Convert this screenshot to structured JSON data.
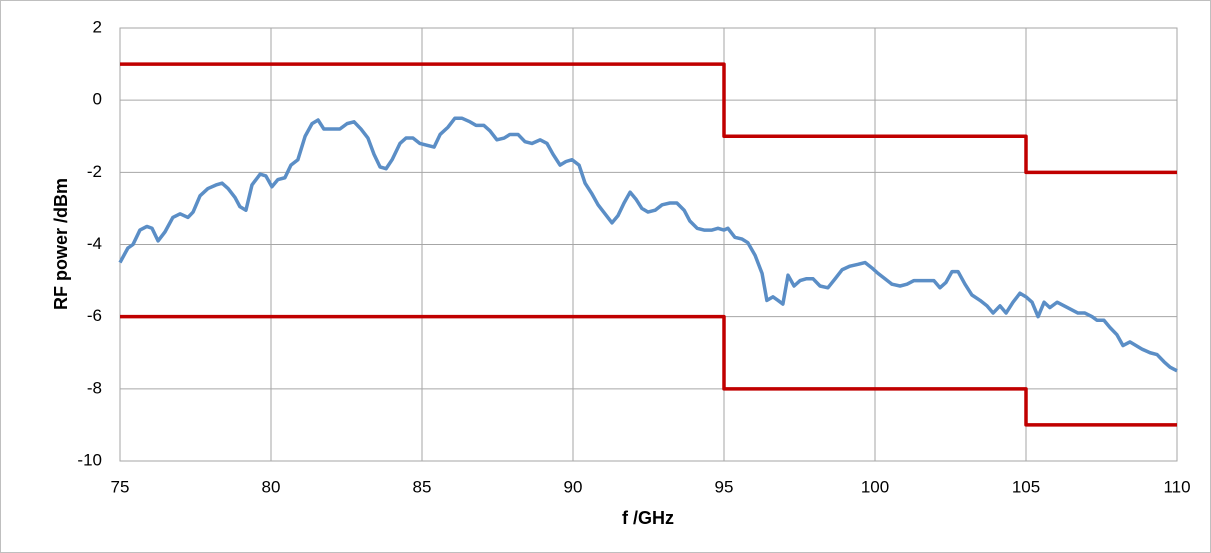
{
  "chart_data": {
    "type": "line",
    "xlabel": "f /GHz",
    "ylabel": "RF power /dBm",
    "xlim": [
      75,
      110
    ],
    "xticks": [
      75,
      80,
      85,
      90,
      95,
      100,
      105,
      110
    ],
    "ylim": [
      -10,
      2
    ],
    "yticks": [
      -10,
      -8,
      -6,
      -4,
      -2,
      0,
      2
    ],
    "grid": true,
    "series": [
      {
        "color": "#c00000",
        "x": [
          75,
          95,
          95,
          105,
          105,
          110
        ],
        "values": [
          1,
          1,
          -1,
          -1,
          -2,
          -2
        ]
      },
      {
        "color": "#c00000",
        "x": [
          75,
          95,
          95,
          105,
          105,
          110
        ],
        "values": [
          -6,
          -6,
          -8,
          -8,
          -9,
          -9
        ]
      },
      {
        "color": "#5b8ec6",
        "x": [
          75,
          75.26,
          75.43,
          75.66,
          75.89,
          76.06,
          76.26,
          76.49,
          76.75,
          76.99,
          77.25,
          77.42,
          77.65,
          77.91,
          78.18,
          78.38,
          78.58,
          78.81,
          78.97,
          79.17,
          79.37,
          79.64,
          79.83,
          80.03,
          80.23,
          80.46,
          80.66,
          80.89,
          81.13,
          81.36,
          81.56,
          81.75,
          81.99,
          82.28,
          82.52,
          82.75,
          82.98,
          83.21,
          83.41,
          83.61,
          83.81,
          84.01,
          84.27,
          84.47,
          84.7,
          84.93,
          85.17,
          85.4,
          85.6,
          85.86,
          86.09,
          86.32,
          86.59,
          86.79,
          87.05,
          87.25,
          87.48,
          87.72,
          87.91,
          88.18,
          88.41,
          88.64,
          88.91,
          89.14,
          89.34,
          89.57,
          89.77,
          89.97,
          90.2,
          90.4,
          90.63,
          90.83,
          91.06,
          91.29,
          91.49,
          91.69,
          91.89,
          92.09,
          92.28,
          92.48,
          92.72,
          92.95,
          93.21,
          93.44,
          93.68,
          93.87,
          94.11,
          94.34,
          94.6,
          94.8,
          95,
          95.13,
          95.36,
          95.6,
          95.79,
          96.03,
          96.26,
          96.42,
          96.62,
          96.79,
          96.95,
          97.12,
          97.32,
          97.52,
          97.72,
          97.95,
          98.18,
          98.44,
          98.68,
          98.91,
          99.17,
          99.44,
          99.67,
          99.9,
          100.1,
          100.33,
          100.56,
          100.83,
          101.06,
          101.29,
          101.49,
          101.72,
          101.95,
          102.15,
          102.35,
          102.55,
          102.75,
          102.98,
          103.21,
          103.48,
          103.71,
          103.91,
          104.14,
          104.34,
          104.57,
          104.8,
          105,
          105.2,
          105.4,
          105.6,
          105.79,
          106.03,
          106.26,
          106.49,
          106.72,
          106.95,
          107.19,
          107.35,
          107.58,
          107.78,
          108.01,
          108.21,
          108.44,
          108.64,
          108.84,
          109.11,
          109.34,
          109.57,
          109.77,
          110
        ],
        "values": [
          -4.5,
          -4.1,
          -4.0,
          -3.6,
          -3.5,
          -3.55,
          -3.9,
          -3.65,
          -3.25,
          -3.15,
          -3.25,
          -3.1,
          -2.65,
          -2.45,
          -2.35,
          -2.3,
          -2.45,
          -2.7,
          -2.95,
          -3.05,
          -2.35,
          -2.05,
          -2.1,
          -2.4,
          -2.2,
          -2.15,
          -1.8,
          -1.65,
          -1.0,
          -0.65,
          -0.55,
          -0.8,
          -0.8,
          -0.8,
          -0.65,
          -0.6,
          -0.8,
          -1.05,
          -1.5,
          -1.85,
          -1.9,
          -1.65,
          -1.2,
          -1.05,
          -1.05,
          -1.2,
          -1.25,
          -1.3,
          -0.95,
          -0.75,
          -0.5,
          -0.5,
          -0.6,
          -0.7,
          -0.7,
          -0.85,
          -1.1,
          -1.05,
          -0.95,
          -0.95,
          -1.15,
          -1.2,
          -1.1,
          -1.2,
          -1.5,
          -1.8,
          -1.7,
          -1.65,
          -1.8,
          -2.3,
          -2.6,
          -2.9,
          -3.15,
          -3.4,
          -3.2,
          -2.85,
          -2.55,
          -2.75,
          -3.0,
          -3.1,
          -3.05,
          -2.9,
          -2.85,
          -2.85,
          -3.05,
          -3.35,
          -3.55,
          -3.6,
          -3.6,
          -3.55,
          -3.6,
          -3.55,
          -3.8,
          -3.85,
          -3.95,
          -4.3,
          -4.8,
          -5.55,
          -5.45,
          -5.55,
          -5.65,
          -4.85,
          -5.15,
          -5.0,
          -4.95,
          -4.95,
          -5.15,
          -5.2,
          -4.95,
          -4.7,
          -4.6,
          -4.55,
          -4.5,
          -4.65,
          -4.8,
          -4.95,
          -5.1,
          -5.15,
          -5.1,
          -5.0,
          -5.0,
          -5.0,
          -5.0,
          -5.2,
          -5.05,
          -4.75,
          -4.75,
          -5.1,
          -5.4,
          -5.55,
          -5.7,
          -5.9,
          -5.7,
          -5.9,
          -5.6,
          -5.35,
          -5.45,
          -5.6,
          -6.0,
          -5.6,
          -5.75,
          -5.6,
          -5.7,
          -5.8,
          -5.9,
          -5.9,
          -6.0,
          -6.1,
          -6.1,
          -6.3,
          -6.5,
          -6.8,
          -6.7,
          -6.8,
          -6.9,
          -7.0,
          -7.05,
          -7.25,
          -7.4,
          -7.5
        ]
      }
    ]
  }
}
